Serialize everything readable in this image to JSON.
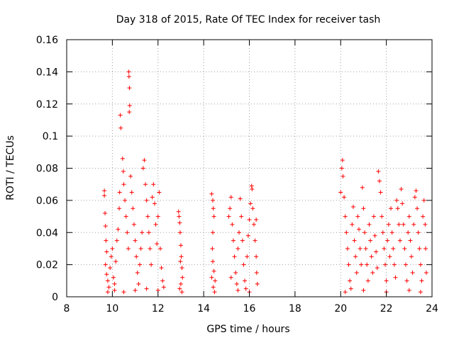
{
  "chart_data": {
    "type": "scatter",
    "title": "Day 318 of 2015, Rate Of TEC Index for receiver tash",
    "xlabel": "GPS time / hours",
    "ylabel": "ROTI / TECUs",
    "xlim": [
      8,
      24
    ],
    "ylim": [
      0,
      0.16
    ],
    "xticks": [
      "8",
      "10",
      "12",
      "14",
      "16",
      "18",
      "20",
      "22",
      "24"
    ],
    "yticks": [
      "0",
      "0.02",
      "0.04",
      "0.06",
      "0.08",
      "0.1",
      "0.12",
      "0.14",
      "0.16"
    ],
    "grid": true,
    "marker": "+",
    "series": [
      {
        "name": "ROTI",
        "color": "#ff0000",
        "points": [
          [
            9.65,
            0.066
          ],
          [
            9.65,
            0.063
          ],
          [
            9.68,
            0.052
          ],
          [
            9.7,
            0.044
          ],
          [
            9.72,
            0.035
          ],
          [
            9.75,
            0.028
          ],
          [
            9.7,
            0.02
          ],
          [
            9.75,
            0.014
          ],
          [
            9.8,
            0.01
          ],
          [
            9.85,
            0.006
          ],
          [
            9.9,
            0.018
          ],
          [
            9.95,
            0.025
          ],
          [
            10.0,
            0.03
          ],
          [
            10.05,
            0.012
          ],
          [
            10.1,
            0.008
          ],
          [
            10.15,
            0.022
          ],
          [
            10.2,
            0.035
          ],
          [
            10.25,
            0.042
          ],
          [
            10.3,
            0.055
          ],
          [
            10.32,
            0.065
          ],
          [
            10.35,
            0.113
          ],
          [
            10.37,
            0.105
          ],
          [
            10.45,
            0.086
          ],
          [
            10.48,
            0.078
          ],
          [
            10.5,
            0.07
          ],
          [
            10.55,
            0.06
          ],
          [
            10.6,
            0.05
          ],
          [
            10.65,
            0.04
          ],
          [
            10.7,
            0.03
          ],
          [
            10.72,
            0.14
          ],
          [
            10.73,
            0.137
          ],
          [
            10.75,
            0.13
          ],
          [
            10.76,
            0.119
          ],
          [
            10.74,
            0.115
          ],
          [
            10.8,
            0.075
          ],
          [
            10.85,
            0.065
          ],
          [
            10.9,
            0.055
          ],
          [
            10.95,
            0.045
          ],
          [
            11.0,
            0.035
          ],
          [
            11.05,
            0.025
          ],
          [
            11.1,
            0.015
          ],
          [
            11.15,
            0.008
          ],
          [
            11.2,
            0.02
          ],
          [
            11.25,
            0.03
          ],
          [
            11.3,
            0.04
          ],
          [
            11.35,
            0.08
          ],
          [
            11.4,
            0.085
          ],
          [
            11.45,
            0.07
          ],
          [
            11.5,
            0.06
          ],
          [
            11.55,
            0.05
          ],
          [
            11.6,
            0.04
          ],
          [
            11.65,
            0.03
          ],
          [
            11.7,
            0.02
          ],
          [
            11.75,
            0.062
          ],
          [
            11.8,
            0.07
          ],
          [
            11.85,
            0.058
          ],
          [
            11.9,
            0.045
          ],
          [
            11.95,
            0.033
          ],
          [
            12.0,
            0.05
          ],
          [
            12.05,
            0.065
          ],
          [
            12.1,
            0.03
          ],
          [
            12.15,
            0.018
          ],
          [
            12.2,
            0.01
          ],
          [
            12.25,
            0.006
          ],
          [
            10.1,
            0.004
          ],
          [
            10.5,
            0.003
          ],
          [
            11.0,
            0.004
          ],
          [
            11.5,
            0.005
          ],
          [
            12.0,
            0.004
          ],
          [
            9.8,
            0.003
          ],
          [
            12.9,
            0.053
          ],
          [
            12.92,
            0.05
          ],
          [
            12.95,
            0.046
          ],
          [
            12.97,
            0.04
          ],
          [
            13.0,
            0.032
          ],
          [
            13.02,
            0.025
          ],
          [
            13.05,
            0.018
          ],
          [
            13.07,
            0.012
          ],
          [
            13.0,
            0.008
          ],
          [
            12.95,
            0.005
          ],
          [
            13.05,
            0.003
          ],
          [
            12.98,
            0.022
          ],
          [
            14.35,
            0.064
          ],
          [
            14.4,
            0.06
          ],
          [
            14.42,
            0.055
          ],
          [
            14.45,
            0.05
          ],
          [
            14.4,
            0.04
          ],
          [
            14.38,
            0.03
          ],
          [
            14.4,
            0.022
          ],
          [
            14.45,
            0.016
          ],
          [
            14.5,
            0.01
          ],
          [
            14.42,
            0.006
          ],
          [
            14.48,
            0.003
          ],
          [
            14.35,
            0.012
          ],
          [
            15.1,
            0.05
          ],
          [
            15.15,
            0.055
          ],
          [
            15.2,
            0.062
          ],
          [
            15.25,
            0.045
          ],
          [
            15.3,
            0.035
          ],
          [
            15.35,
            0.025
          ],
          [
            15.4,
            0.015
          ],
          [
            15.45,
            0.008
          ],
          [
            15.5,
            0.03
          ],
          [
            15.55,
            0.04
          ],
          [
            15.6,
            0.061
          ],
          [
            15.65,
            0.05
          ],
          [
            15.7,
            0.035
          ],
          [
            15.75,
            0.02
          ],
          [
            15.8,
            0.01
          ],
          [
            15.85,
            0.005
          ],
          [
            15.9,
            0.025
          ],
          [
            15.95,
            0.038
          ],
          [
            16.0,
            0.048
          ],
          [
            16.05,
            0.058
          ],
          [
            16.1,
            0.069
          ],
          [
            16.12,
            0.067
          ],
          [
            16.15,
            0.055
          ],
          [
            16.2,
            0.045
          ],
          [
            16.25,
            0.035
          ],
          [
            16.3,
            0.025
          ],
          [
            16.32,
            0.015
          ],
          [
            16.35,
            0.008
          ],
          [
            16.3,
            0.048
          ],
          [
            15.2,
            0.012
          ],
          [
            15.5,
            0.004
          ],
          [
            16.0,
            0.003
          ],
          [
            20.0,
            0.065
          ],
          [
            20.05,
            0.08
          ],
          [
            20.08,
            0.085
          ],
          [
            20.1,
            0.075
          ],
          [
            20.15,
            0.062
          ],
          [
            20.2,
            0.05
          ],
          [
            20.25,
            0.04
          ],
          [
            20.3,
            0.03
          ],
          [
            20.35,
            0.02
          ],
          [
            20.4,
            0.01
          ],
          [
            20.45,
            0.005
          ],
          [
            20.5,
            0.045
          ],
          [
            20.55,
            0.056
          ],
          [
            20.6,
            0.035
          ],
          [
            20.65,
            0.025
          ],
          [
            20.7,
            0.015
          ],
          [
            20.75,
            0.05
          ],
          [
            20.8,
            0.042
          ],
          [
            20.85,
            0.03
          ],
          [
            20.9,
            0.02
          ],
          [
            20.95,
            0.068
          ],
          [
            21.0,
            0.055
          ],
          [
            21.05,
            0.04
          ],
          [
            21.1,
            0.03
          ],
          [
            21.15,
            0.02
          ],
          [
            21.2,
            0.01
          ],
          [
            21.25,
            0.045
          ],
          [
            21.3,
            0.035
          ],
          [
            21.35,
            0.025
          ],
          [
            21.4,
            0.015
          ],
          [
            21.45,
            0.05
          ],
          [
            21.5,
            0.038
          ],
          [
            21.55,
            0.028
          ],
          [
            21.6,
            0.018
          ],
          [
            21.65,
            0.078
          ],
          [
            21.7,
            0.072
          ],
          [
            21.75,
            0.065
          ],
          [
            21.8,
            0.05
          ],
          [
            21.85,
            0.04
          ],
          [
            21.9,
            0.03
          ],
          [
            21.95,
            0.02
          ],
          [
            22.0,
            0.01
          ],
          [
            22.05,
            0.035
          ],
          [
            22.1,
            0.045
          ],
          [
            22.15,
            0.025
          ],
          [
            22.2,
            0.055
          ],
          [
            22.25,
            0.04
          ],
          [
            22.3,
            0.03
          ],
          [
            22.35,
            0.02
          ],
          [
            22.4,
            0.012
          ],
          [
            22.45,
            0.06
          ],
          [
            22.5,
            0.055
          ],
          [
            22.55,
            0.045
          ],
          [
            22.6,
            0.035
          ],
          [
            22.65,
            0.067
          ],
          [
            22.7,
            0.058
          ],
          [
            22.75,
            0.045
          ],
          [
            22.8,
            0.03
          ],
          [
            22.85,
            0.02
          ],
          [
            22.9,
            0.01
          ],
          [
            22.95,
            0.04
          ],
          [
            23.0,
            0.05
          ],
          [
            23.05,
            0.035
          ],
          [
            23.1,
            0.025
          ],
          [
            23.15,
            0.015
          ],
          [
            23.2,
            0.045
          ],
          [
            23.25,
            0.062
          ],
          [
            23.3,
            0.066
          ],
          [
            23.35,
            0.055
          ],
          [
            23.4,
            0.04
          ],
          [
            23.45,
            0.03
          ],
          [
            23.5,
            0.02
          ],
          [
            23.55,
            0.01
          ],
          [
            23.6,
            0.05
          ],
          [
            23.65,
            0.06
          ],
          [
            23.7,
            0.045
          ],
          [
            23.72,
            0.03
          ],
          [
            23.75,
            0.015
          ],
          [
            20.2,
            0.003
          ],
          [
            21.0,
            0.004
          ],
          [
            22.0,
            0.003
          ],
          [
            23.0,
            0.004
          ],
          [
            23.5,
            0.003
          ]
        ]
      }
    ]
  }
}
